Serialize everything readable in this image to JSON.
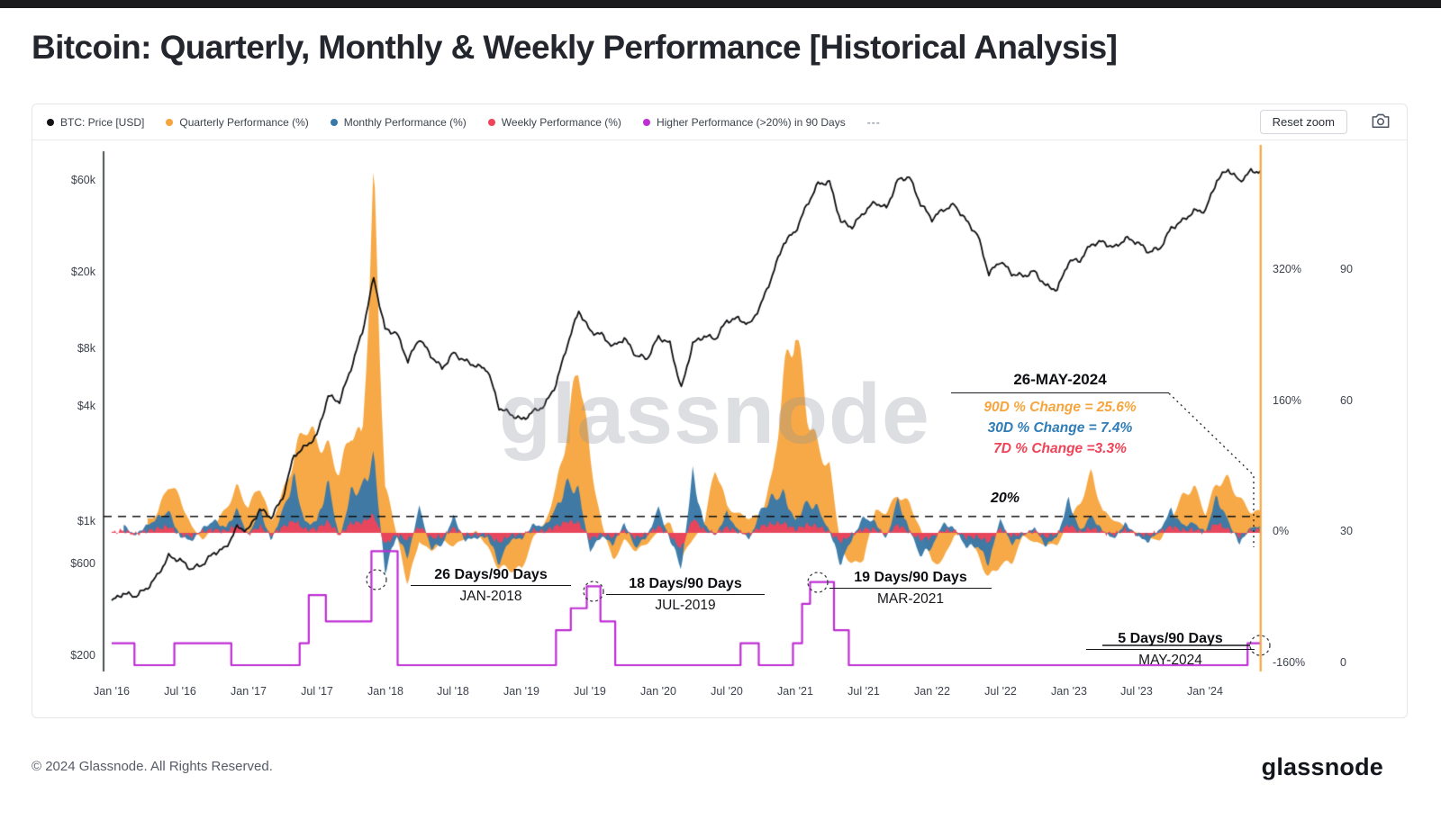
{
  "header": {
    "title": "Bitcoin: Quarterly, Monthly & Weekly Performance [Historical Analysis]"
  },
  "toolbar": {
    "reset_zoom_label": "Reset zoom"
  },
  "legend": {
    "items": [
      {
        "label": "BTC: Price [USD]",
        "color": "#111215"
      },
      {
        "label": "Quarterly Performance (%)",
        "color": "#F6A53E"
      },
      {
        "label": "Monthly Performance (%)",
        "color": "#3878A8"
      },
      {
        "label": "Weekly Performance (%)",
        "color": "#EF4458"
      },
      {
        "label": "Higher Performance (>20%) in 90 Days",
        "color": "#BE2ED3"
      },
      {
        "label": "---",
        "color": "#9aa0aa"
      }
    ]
  },
  "watermark": "glassnode",
  "axes": {
    "price_ticks": [
      "$60k",
      "$20k",
      "$8k",
      "$4k",
      "$1k",
      "$600",
      "$200"
    ],
    "pct_ticks": [
      "320%",
      "160%",
      "0%",
      "-160%"
    ],
    "days_ticks": [
      "90",
      "60",
      "30",
      "0"
    ],
    "x_ticks": [
      "Jan '16",
      "Jul '16",
      "Jan '17",
      "Jul '17",
      "Jan '18",
      "Jul '18",
      "Jan '19",
      "Jul '19",
      "Jan '20",
      "Jul '20",
      "Jan '21",
      "Jul '21",
      "Jan '22",
      "Jul '22",
      "Jan '23",
      "Jul '23",
      "Jan '24"
    ]
  },
  "annotations": {
    "current": {
      "date": "26-MAY-2024",
      "q": "90D % Change = 25.6%",
      "m": "30D % Change = 7.4%",
      "w": "7D % Change =3.3%"
    },
    "threshold_label": "20%",
    "events": [
      {
        "title": "26 Days/90 Days",
        "date": "JAN-2018"
      },
      {
        "title": "18 Days/90 Days",
        "date": "JUL-2019"
      },
      {
        "title": "19 Days/90 Days",
        "date": "MAR-2021"
      },
      {
        "title": "5 Days/90 Days",
        "date": "MAY-2024"
      }
    ]
  },
  "footer": {
    "copyright": "© 2024 Glassnode. All Rights Reserved.",
    "logo": "glassnode"
  },
  "chart_data": {
    "type": "line+area+step",
    "title": "Bitcoin: Quarterly, Monthly & Weekly Performance [Historical Analysis]",
    "x_unit": "month",
    "x_start": "2016-01",
    "x_end": "2024-05",
    "samples": 101,
    "price_axis": {
      "scale": "log",
      "ticks_usd": [
        60000,
        20000,
        8000,
        4000,
        1000,
        600,
        200
      ]
    },
    "percent_axis": {
      "ticks": [
        320,
        160,
        0,
        -160
      ]
    },
    "days_axis": {
      "ticks": [
        90,
        60,
        30,
        0
      ]
    },
    "threshold": {
      "percent": 20,
      "style": "dashed",
      "color": "#111111"
    },
    "cursor": {
      "date": "26-MAY-2024",
      "color": "#F6A53E"
    },
    "series": [
      {
        "name": "BTC: Price [USD]",
        "type": "line",
        "axis": "price_log",
        "color": "#0e0f12",
        "values_key": "price_usd_monthly"
      },
      {
        "name": "Quarterly Performance (%)",
        "type": "area",
        "axis": "percent",
        "color": "#F6A53E",
        "values_key": "quarterly_pct_monthly"
      },
      {
        "name": "Monthly Performance (%)",
        "type": "area",
        "axis": "percent",
        "color": "#3878A8",
        "values_key": "monthly_pct_monthly"
      },
      {
        "name": "Weekly Performance (%)",
        "type": "area",
        "axis": "percent",
        "color": "#EF4458",
        "values_key": "weekly_pct_monthly"
      },
      {
        "name": "Higher Performance (>20%) in 90 Days",
        "type": "step",
        "axis": "days",
        "color": "#BE2ED3",
        "values_key": "days_above_20_steps"
      }
    ],
    "price_usd_monthly": [
      390,
      430,
      415,
      450,
      530,
      670,
      640,
      575,
      610,
      700,
      740,
      950,
      920,
      1180,
      1070,
      1350,
      2250,
      2500,
      2850,
      4600,
      4300,
      6400,
      9900,
      19000,
      10200,
      9800,
      7000,
      9200,
      7500,
      6400,
      7700,
      7000,
      6600,
      6300,
      4000,
      3700,
      3450,
      3800,
      4100,
      5300,
      8550,
      12800,
      10000,
      9600,
      8300,
      9200,
      7500,
      7200,
      9350,
      8600,
      5000,
      8600,
      9450,
      9150,
      11350,
      11650,
      10800,
      13800,
      19700,
      29000,
      33100,
      45200,
      58800,
      60000,
      37300,
      35000,
      41600,
      47100,
      43800,
      61300,
      64000,
      46200,
      38500,
      43200,
      45500,
      37700,
      31800,
      19900,
      23300,
      20000,
      19400,
      20500,
      17200,
      16500,
      23100,
      23500,
      28500,
      29200,
      27200,
      30500,
      29200,
      26000,
      27000,
      34500,
      37700,
      42300,
      42600,
      61200,
      70000,
      60600,
      68300
    ],
    "quarterly_pct_monthly": [
      null,
      null,
      null,
      15,
      23,
      61,
      42,
      8,
      -9,
      9,
      29,
      56,
      31,
      59,
      13,
      47,
      91,
      134,
      111,
      104,
      72,
      125,
      115,
      420,
      59,
      -1,
      -63,
      -10,
      -23,
      -9,
      -16,
      -7,
      3,
      -18,
      -43,
      -44,
      -45,
      -5,
      11,
      54,
      125,
      212,
      89,
      12,
      -35,
      -8,
      -22,
      -13,
      2,
      15,
      -31,
      -8,
      10,
      83,
      32,
      23,
      18,
      22,
      69,
      190,
      252,
      150,
      103,
      81,
      -17,
      -40,
      -31,
      26,
      25,
      47,
      36,
      5,
      -37,
      -33,
      -2,
      -2,
      -26,
      -56,
      -38,
      -37,
      -3,
      -12,
      -14,
      -15,
      13,
      37,
      73,
      26,
      16,
      7,
      0,
      -4,
      -11,
      18,
      45,
      57,
      23,
      62,
      65,
      42,
      25.6
    ],
    "monthly_pct_monthly": [
      null,
      10,
      -3,
      8,
      18,
      26,
      -4,
      -10,
      6,
      15,
      6,
      28,
      -3,
      28,
      -9,
      26,
      67,
      11,
      14,
      61,
      -7,
      49,
      55,
      92,
      -46,
      -4,
      -29,
      31,
      -18,
      -15,
      20,
      -9,
      -6,
      -5,
      -37,
      -8,
      -7,
      10,
      8,
      29,
      61,
      50,
      -22,
      -4,
      -14,
      11,
      -18,
      -4,
      30,
      -8,
      -42,
      72,
      10,
      -3,
      24,
      3,
      -7,
      28,
      43,
      47,
      14,
      37,
      30,
      2,
      -38,
      -6,
      19,
      13,
      -7,
      40,
      4,
      -28,
      -17,
      12,
      5,
      -17,
      -16,
      -37,
      17,
      -14,
      -3,
      6,
      -16,
      -4,
      40,
      2,
      21,
      2,
      -7,
      12,
      -4,
      -11,
      4,
      28,
      9,
      12,
      1,
      44,
      14,
      -13,
      7.4
    ],
    "weekly_pct_monthly": [
      0,
      3,
      -2,
      2,
      5,
      8,
      -2,
      -4,
      2,
      4,
      2,
      9,
      -1,
      8,
      -3,
      7,
      15,
      4,
      5,
      14,
      -3,
      12,
      13,
      22,
      -14,
      -2,
      -9,
      8,
      -6,
      -5,
      6,
      -3,
      -2,
      -2,
      -12,
      -3,
      -2,
      3,
      2,
      8,
      14,
      12,
      -7,
      -2,
      -5,
      3,
      -6,
      -2,
      8,
      -3,
      -20,
      18,
      3,
      -1,
      7,
      1,
      -2,
      8,
      11,
      12,
      4,
      10,
      8,
      1,
      -11,
      -2,
      5,
      4,
      -2,
      10,
      1,
      -8,
      -5,
      3,
      2,
      -5,
      -5,
      -11,
      5,
      -4,
      -1,
      2,
      -5,
      -1,
      10,
      1,
      6,
      1,
      -2,
      4,
      -1,
      -3,
      1,
      8,
      3,
      4,
      1,
      12,
      4,
      -4,
      3.3
    ],
    "days_above_20_steps": [
      [
        0,
        5
      ],
      [
        2,
        0
      ],
      [
        5.5,
        5
      ],
      [
        10.5,
        0
      ],
      [
        16.5,
        5
      ],
      [
        17.3,
        16
      ],
      [
        18.8,
        10
      ],
      [
        22.8,
        26
      ],
      [
        25.1,
        0
      ],
      [
        39,
        8
      ],
      [
        40.3,
        13
      ],
      [
        41.7,
        18
      ],
      [
        42.9,
        10
      ],
      [
        44.2,
        0
      ],
      [
        55.2,
        5
      ],
      [
        56.8,
        0
      ],
      [
        59.8,
        5
      ],
      [
        60.6,
        14
      ],
      [
        61.3,
        19
      ],
      [
        63.4,
        8
      ],
      [
        64.7,
        0
      ],
      [
        99.7,
        5
      ],
      [
        100.85,
        5
      ]
    ],
    "event_markers": [
      {
        "date": "JAN-2018",
        "days_in_90": 26
      },
      {
        "date": "JUL-2019",
        "days_in_90": 18
      },
      {
        "date": "MAR-2021",
        "days_in_90": 19
      },
      {
        "date": "MAY-2024",
        "days_in_90": 5
      }
    ]
  }
}
